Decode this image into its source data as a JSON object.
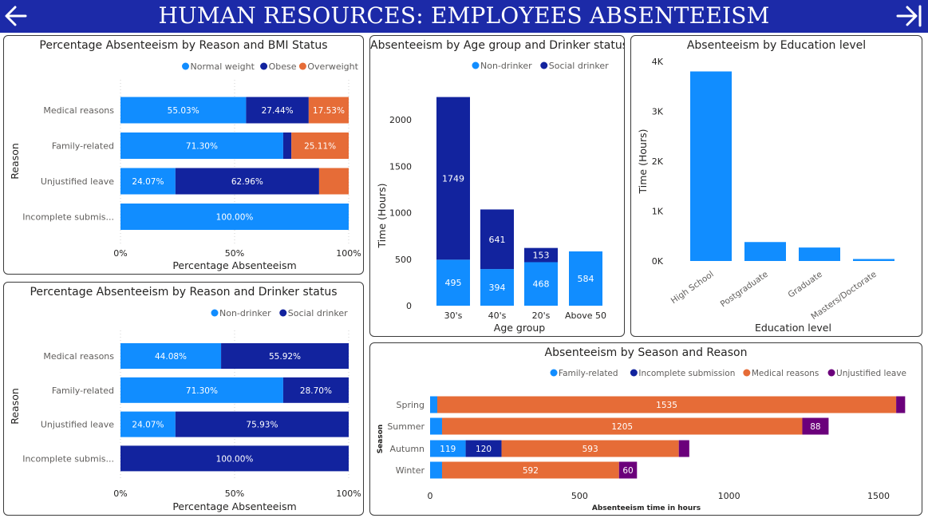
{
  "header": {
    "title": "HUMAN RESOURCES: EMPLOYEES ABSENTEEISM",
    "back_icon": "arrow-left-icon",
    "next_icon": "arrow-right-to-bar-icon"
  },
  "colors": {
    "header": "#1c2aa8",
    "normal": "#118dff",
    "obese": "#12239e",
    "overweight": "#e66c37",
    "purple": "#6b007b"
  },
  "panels": {
    "bmi": {
      "title": "Percentage Absenteeism by Reason and BMI Status"
    },
    "age": {
      "title": "Absenteeism by Age group and Drinker status"
    },
    "edu": {
      "title": "Absenteeism by Education level"
    },
    "drink": {
      "title": "Percentage Absenteeism by Reason and Drinker status"
    },
    "season": {
      "title": "Absenteeism by Season and Reason"
    }
  },
  "chart_data": [
    {
      "id": "bmi",
      "type": "bar",
      "orientation": "horizontal",
      "stacked": "percent",
      "title": "Percentage Absenteeism by Reason and BMI Status",
      "xlabel": "Percentage Absenteeism",
      "ylabel": "Reason",
      "xticks": [
        "0%",
        "50%",
        "100%"
      ],
      "legend_position": "top-right",
      "categories": [
        "Medical reasons",
        "Family-related",
        "Unjustified leave",
        "Incomplete submis..."
      ],
      "series": [
        {
          "name": "Normal weight",
          "color": "#118dff",
          "values": [
            55.03,
            71.3,
            24.07,
            100.0
          ],
          "labels": [
            "55.03%",
            "71.30%",
            "24.07%",
            "100.00%"
          ]
        },
        {
          "name": "Obese",
          "color": "#12239e",
          "values": [
            27.44,
            3.59,
            62.96,
            0
          ],
          "labels": [
            "27.44%",
            "",
            "62.96%",
            ""
          ]
        },
        {
          "name": "Overweight",
          "color": "#e66c37",
          "values": [
            17.53,
            25.11,
            12.97,
            0
          ],
          "labels": [
            "17.53%",
            "25.11%",
            "",
            ""
          ]
        }
      ]
    },
    {
      "id": "age",
      "type": "bar",
      "orientation": "vertical",
      "stacked": true,
      "title": "Absenteeism by Age group and Drinker status",
      "xlabel": "Age group",
      "ylabel": "Time (Hours)",
      "ylim": [
        0,
        2300
      ],
      "yticks": [
        0,
        500,
        1000,
        1500,
        2000
      ],
      "legend_position": "top-right",
      "categories": [
        "30's",
        "40's",
        "20's",
        "Above 50"
      ],
      "series": [
        {
          "name": "Non-drinker",
          "color": "#118dff",
          "values": [
            495,
            394,
            468,
            584
          ],
          "labels": [
            "495",
            "394",
            "468",
            "584"
          ]
        },
        {
          "name": "Social drinker",
          "color": "#12239e",
          "values": [
            1749,
            641,
            153,
            0
          ],
          "labels": [
            "1749",
            "641",
            "153",
            ""
          ]
        }
      ]
    },
    {
      "id": "edu",
      "type": "bar",
      "orientation": "vertical",
      "title": "Absenteeism by Education level",
      "xlabel": "Education level",
      "ylabel": "Time (Hours)",
      "ylim": [
        0,
        4200
      ],
      "yticks": [
        0,
        1000,
        2000,
        3000,
        4000
      ],
      "ytick_labels": [
        "0K",
        "1K",
        "2K",
        "3K",
        "4K"
      ],
      "categories": [
        "High School",
        "Postgraduate",
        "Graduate",
        "Masters/Doctorate"
      ],
      "series": [
        {
          "name": "Time (Hours)",
          "color": "#118dff",
          "values": [
            3800,
            380,
            270,
            40
          ]
        }
      ]
    },
    {
      "id": "drink",
      "type": "bar",
      "orientation": "horizontal",
      "stacked": "percent",
      "title": "Percentage Absenteeism by Reason and Drinker status",
      "xlabel": "Percentage Absenteeism",
      "ylabel": "Reason",
      "xticks": [
        "0%",
        "50%",
        "100%"
      ],
      "legend_position": "top-right",
      "categories": [
        "Medical reasons",
        "Family-related",
        "Unjustified leave",
        "Incomplete submis..."
      ],
      "series": [
        {
          "name": "Non-drinker",
          "color": "#118dff",
          "values": [
            44.08,
            71.3,
            24.07,
            0
          ],
          "labels": [
            "44.08%",
            "71.30%",
            "24.07%",
            ""
          ]
        },
        {
          "name": "Social drinker",
          "color": "#12239e",
          "values": [
            55.92,
            28.7,
            75.93,
            100.0
          ],
          "labels": [
            "55.92%",
            "28.70%",
            "75.93%",
            "100.00%"
          ]
        }
      ]
    },
    {
      "id": "season",
      "type": "bar",
      "orientation": "horizontal",
      "stacked": true,
      "title": "Absenteeism by Season and Reason",
      "xlabel": "Absenteeism time in hours",
      "ylabel": "Season",
      "xlim": [
        0,
        1620
      ],
      "xticks": [
        0,
        500,
        1000,
        1500
      ],
      "legend_position": "top-right",
      "categories": [
        "Spring",
        "Summer",
        "Autumn",
        "Winter"
      ],
      "series": [
        {
          "name": "Family-related",
          "color": "#118dff",
          "values": [
            24,
            40,
            119,
            40
          ],
          "labels": [
            "",
            "",
            "119",
            ""
          ]
        },
        {
          "name": "Incomplete submission",
          "color": "#12239e",
          "values": [
            0,
            0,
            120,
            0
          ],
          "labels": [
            "",
            "",
            "120",
            ""
          ]
        },
        {
          "name": "Medical reasons",
          "color": "#e66c37",
          "values": [
            1535,
            1205,
            593,
            592
          ],
          "labels": [
            "1535",
            "1205",
            "593",
            "592"
          ]
        },
        {
          "name": "Unjustified leave",
          "color": "#6b007b",
          "values": [
            30,
            88,
            35,
            60
          ],
          "labels": [
            "",
            "88",
            "",
            "60"
          ]
        }
      ]
    }
  ]
}
